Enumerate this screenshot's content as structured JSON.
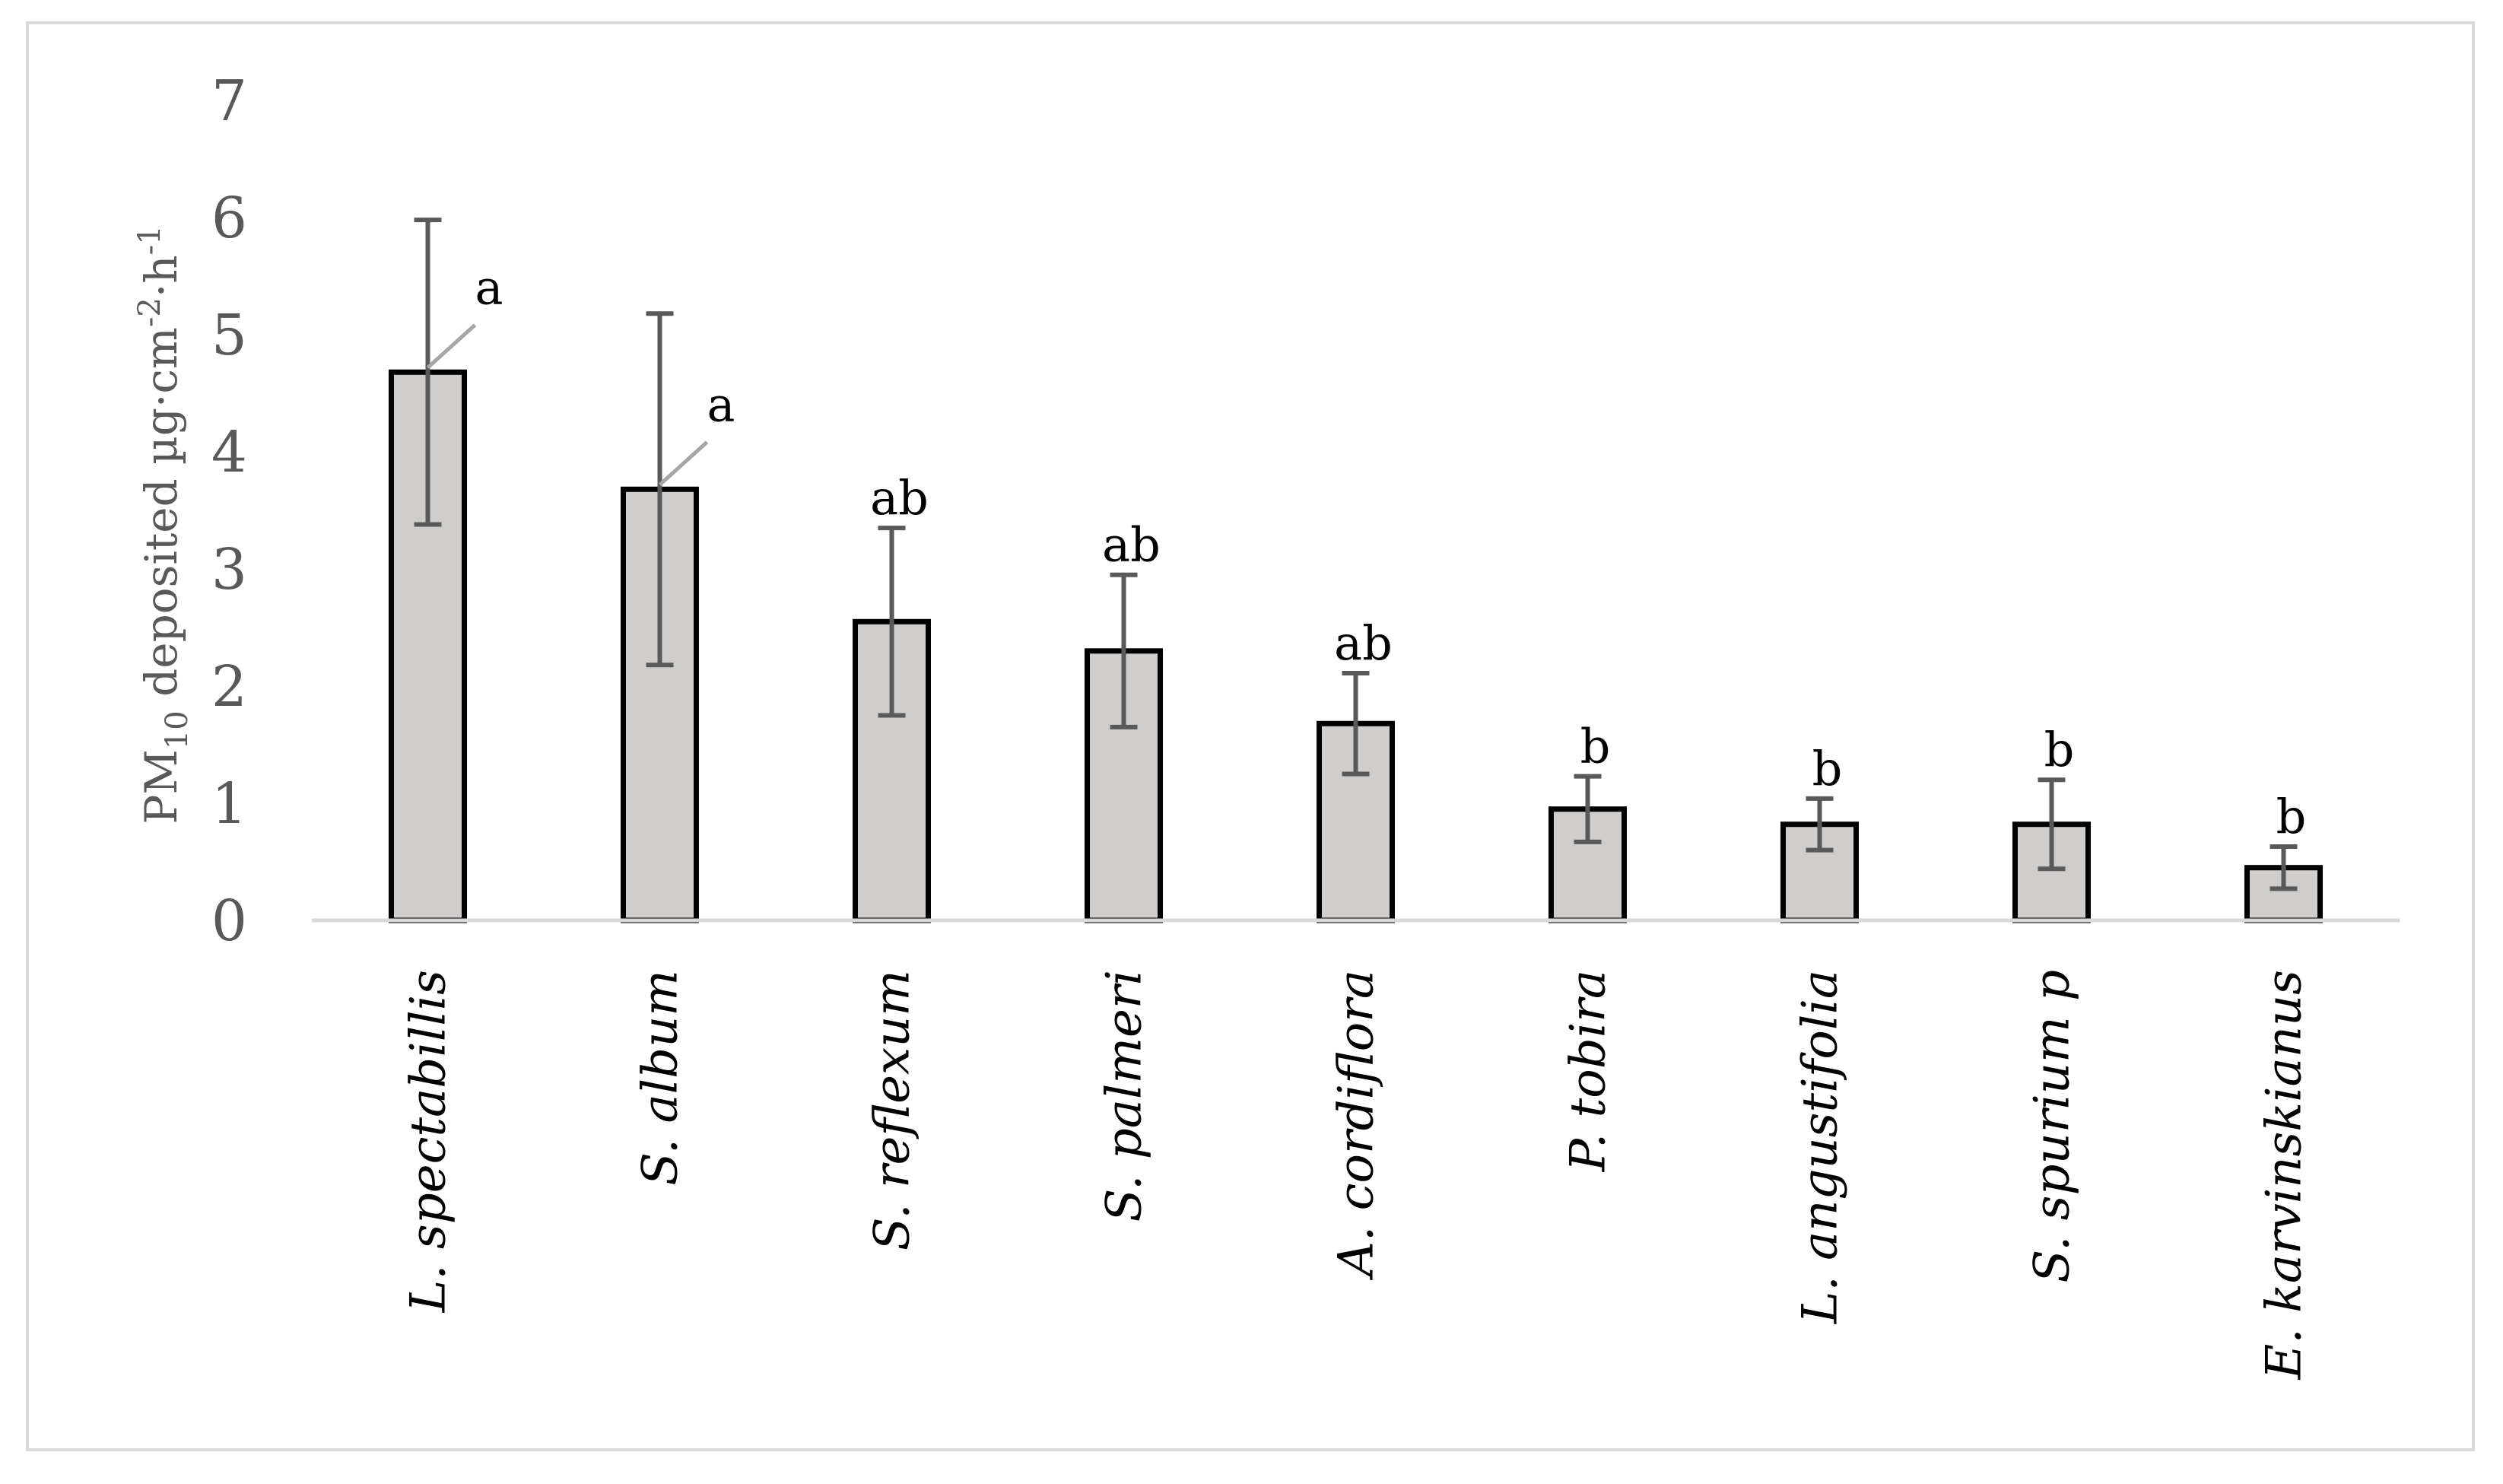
{
  "chart_data": {
    "type": "bar",
    "title": "",
    "xlabel": "",
    "ylabel": {
      "base": "PM",
      "subscript": "10",
      "rest": " deposited µg·cm",
      "sup1": "-2",
      "mid": "·h",
      "sup2": "-1"
    },
    "ylim": [
      0,
      7
    ],
    "yticks": [
      "0",
      "1",
      "2",
      "3",
      "4",
      "5",
      "6",
      "7"
    ],
    "categories": [
      "L. spectabillis",
      "S. album",
      "S. reflexum",
      "S. palmeri",
      "A. cordiflora",
      "P. tobira",
      "L. angustifolia",
      "S. spurium p",
      "E. karvinskianus"
    ],
    "values": [
      4.68,
      3.68,
      2.55,
      2.3,
      1.68,
      0.95,
      0.82,
      0.82,
      0.45
    ],
    "errors": [
      1.3,
      1.5,
      0.8,
      0.65,
      0.43,
      0.28,
      0.22,
      0.38,
      0.18
    ],
    "significance": [
      "a",
      "a",
      "ab",
      "ab",
      "ab",
      "b",
      "b",
      "b",
      "b"
    ],
    "colors": {
      "bar_fill": "#d0cecd",
      "bar_edge": "#000000",
      "error_bar": "#595959",
      "axis": "#d9d9d9"
    },
    "grid": false,
    "legend": "none"
  }
}
